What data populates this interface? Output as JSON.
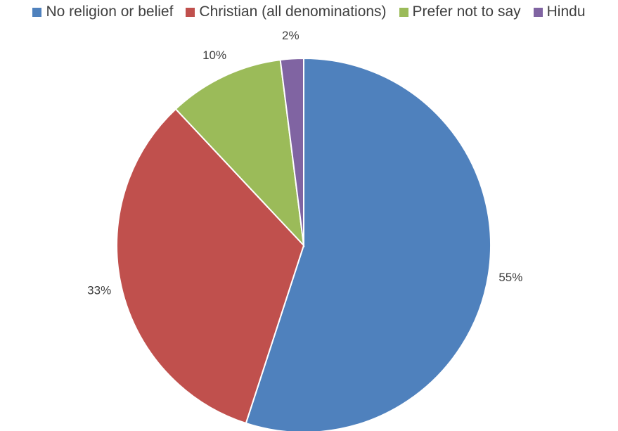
{
  "chart_data": {
    "type": "pie",
    "title": "",
    "legend_position": "top",
    "categories": [
      "No religion or belief",
      "Christian (all denominations)",
      "Prefer not to say",
      "Hindu"
    ],
    "values": [
      55,
      33,
      10,
      2
    ],
    "labels": [
      "55%",
      "33%",
      "10%",
      "2%"
    ],
    "colors": [
      "#4F81BD",
      "#C0504D",
      "#9BBB59",
      "#8064A2"
    ]
  }
}
